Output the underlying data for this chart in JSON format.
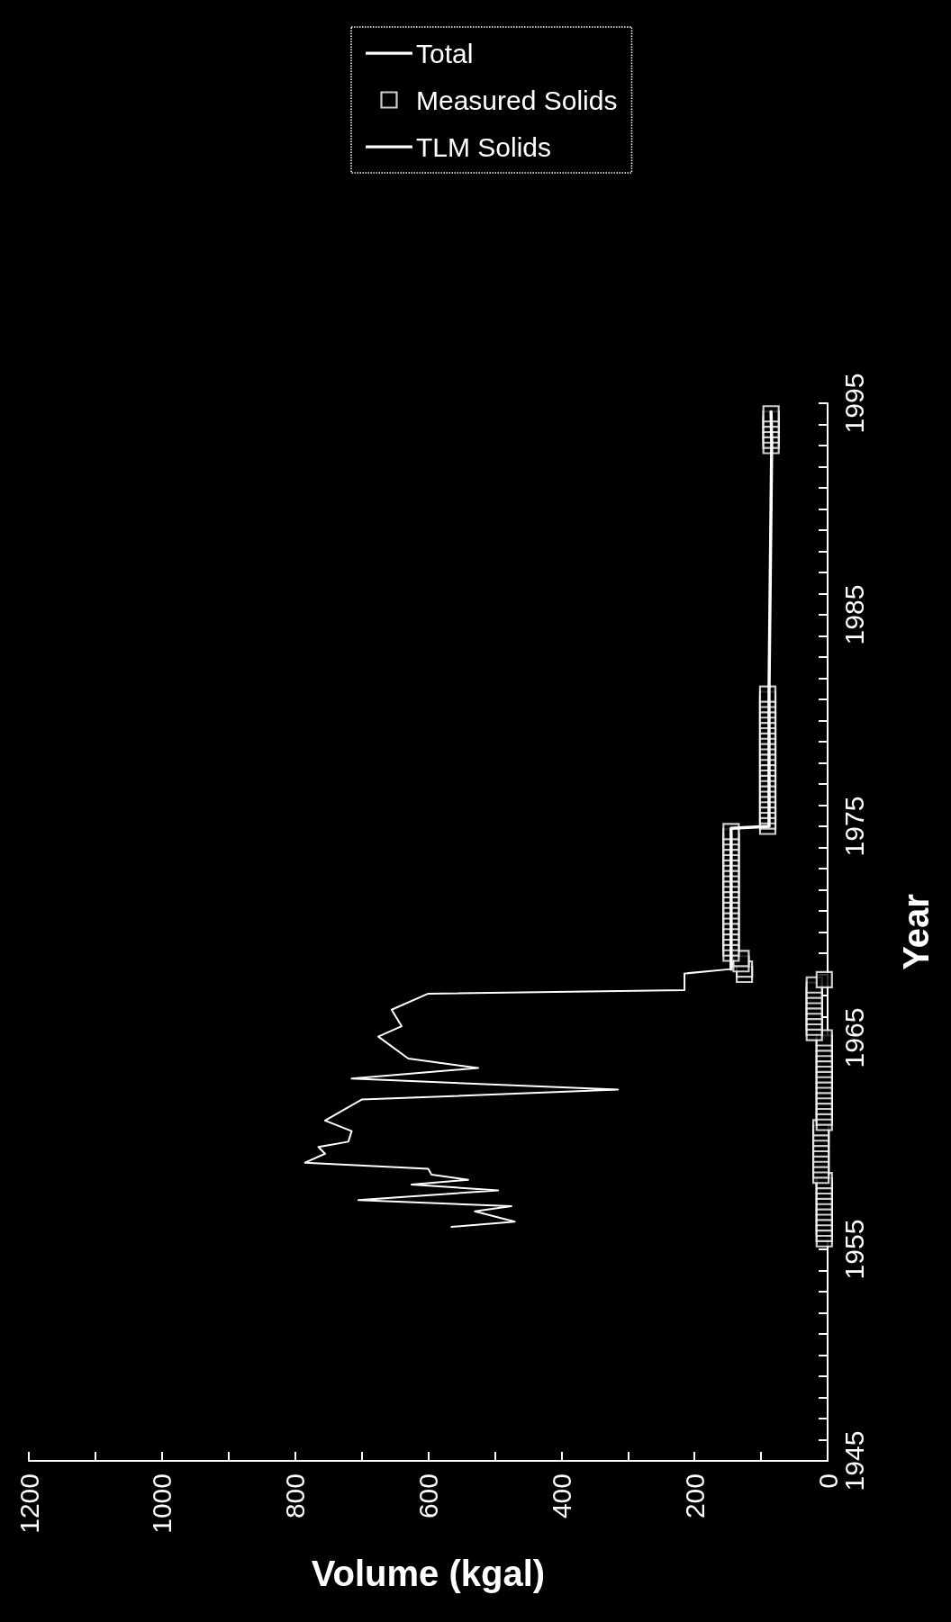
{
  "chart_data": {
    "type": "line",
    "xlabel": "Volume (kgal)",
    "ylabel": "Year",
    "xlim": [
      1200,
      0
    ],
    "ylim": [
      1945,
      1995
    ],
    "xticks": [
      0,
      {
        "value": 100,
        "label": null
      },
      200,
      {
        "value": 300,
        "label": null
      },
      400,
      {
        "value": 500,
        "label": null
      },
      600,
      {
        "value": 700,
        "label": null
      },
      800,
      {
        "value": 900,
        "label": null
      },
      1000,
      {
        "value": 1100,
        "label": null
      },
      1200
    ],
    "yticks": [
      1945,
      {
        "value": 1946,
        "label": null
      },
      {
        "value": 1947,
        "label": null
      },
      {
        "value": 1948,
        "label": null
      },
      {
        "value": 1949,
        "label": null
      },
      {
        "value": 1950,
        "label": null
      },
      {
        "value": 1951,
        "label": null
      },
      {
        "value": 1952,
        "label": null
      },
      {
        "value": 1953,
        "label": null
      },
      {
        "value": 1954,
        "label": null
      },
      1955,
      {
        "value": 1956,
        "label": null
      },
      {
        "value": 1957,
        "label": null
      },
      {
        "value": 1958,
        "label": null
      },
      {
        "value": 1959,
        "label": null
      },
      {
        "value": 1960,
        "label": null
      },
      {
        "value": 1961,
        "label": null
      },
      {
        "value": 1962,
        "label": null
      },
      {
        "value": 1963,
        "label": null
      },
      {
        "value": 1964,
        "label": null
      },
      1965,
      {
        "value": 1966,
        "label": null
      },
      {
        "value": 1967,
        "label": null
      },
      {
        "value": 1968,
        "label": null
      },
      {
        "value": 1969,
        "label": null
      },
      {
        "value": 1970,
        "label": null
      },
      {
        "value": 1971,
        "label": null
      },
      {
        "value": 1972,
        "label": null
      },
      {
        "value": 1973,
        "label": null
      },
      {
        "value": 1974,
        "label": null
      },
      1975,
      {
        "value": 1976,
        "label": null
      },
      {
        "value": 1977,
        "label": null
      },
      {
        "value": 1978,
        "label": null
      },
      {
        "value": 1979,
        "label": null
      },
      {
        "value": 1980,
        "label": null
      },
      {
        "value": 1981,
        "label": null
      },
      {
        "value": 1982,
        "label": null
      },
      {
        "value": 1983,
        "label": null
      },
      {
        "value": 1984,
        "label": null
      },
      1985,
      {
        "value": 1986,
        "label": null
      },
      {
        "value": 1987,
        "label": null
      },
      {
        "value": 1988,
        "label": null
      },
      {
        "value": 1989,
        "label": null
      },
      {
        "value": 1990,
        "label": null
      },
      {
        "value": 1991,
        "label": null
      },
      {
        "value": 1992,
        "label": null
      },
      {
        "value": 1993,
        "label": null
      },
      {
        "value": 1994,
        "label": null
      },
      1995
    ],
    "grid": false,
    "legend": "top",
    "series": [
      {
        "name": "Total",
        "color": "#ffffff",
        "values": [
          1956.06,
          1956.31,
          1956.8,
          1957.04,
          1957.33,
          1957.79,
          1958.06,
          1958.29,
          1958.53,
          1958.81,
          1959.1,
          1959.52,
          1959.84,
          1960.09,
          1960.59,
          1961.09,
          1962.08,
          1962.55,
          1963.07,
          1963.57,
          1964.02,
          1965.06,
          1965.55,
          1966.33,
          1967.09,
          1967.26,
          1968.04,
          1968.25
        ],
        "x": [
          565,
          470,
          530,
          475,
          705,
          495,
          625,
          540,
          595,
          600,
          785,
          755,
          765,
          720,
          715,
          755,
          700,
          315,
          715,
          525,
          630,
          675,
          640,
          655,
          600,
          215,
          215,
          145
        ]
      },
      {
        "name": "Measured Solids",
        "type": "scatter",
        "marker": "square",
        "color": "#ffffff",
        "values": [
          1955.5,
          1955.75,
          1956,
          1956.25,
          1956.5,
          1956.75,
          1957,
          1957.25,
          1957.5,
          1957.75,
          1958,
          1958.25,
          1958.5,
          1958.75,
          1959,
          1959.25,
          1959.5,
          1959.75,
          1960,
          1960.25,
          1960.5,
          1960.75,
          1961,
          1961.25,
          1961.5,
          1961.75,
          1962,
          1962.25,
          1962.5,
          1962.75,
          1963,
          1963.25,
          1963.5,
          1963.75,
          1964,
          1964.25,
          1964.5,
          1964.75,
          1965,
          1965.25,
          1965.5,
          1965.75,
          1966,
          1966.25,
          1966.5,
          1966.75,
          1967,
          1967.25,
          1967.5,
          1967.75,
          1968,
          1968.25,
          1968.5,
          1968.75,
          1969,
          1969.25,
          1969.5,
          1969.75,
          1970,
          1970.25,
          1970.5,
          1970.75,
          1971,
          1971.25,
          1971.5,
          1971.75,
          1972,
          1972.25,
          1972.5,
          1972.75,
          1973,
          1973.25,
          1973.5,
          1973.75,
          1974,
          1974.25,
          1974.5,
          1974.75,
          1975,
          1975.25,
          1975.5,
          1975.75,
          1976,
          1976.25,
          1976.5,
          1976.75,
          1977,
          1977.25,
          1977.5,
          1977.75,
          1978,
          1978.25,
          1978.5,
          1978.75,
          1979,
          1979.25,
          1979.5,
          1979.75,
          1980,
          1980.25,
          1980.5,
          1980.75,
          1981,
          1981.25,
          1993,
          1993.25,
          1993.5,
          1993.75,
          1994,
          1994.25,
          1994.5
        ],
        "x": [
          5,
          5,
          5,
          5,
          5,
          5,
          5,
          5,
          5,
          5,
          5,
          5,
          10,
          10,
          10,
          10,
          10,
          10,
          10,
          10,
          10,
          10,
          5,
          5,
          5,
          5,
          5,
          5,
          5,
          5,
          5,
          5,
          5,
          5,
          5,
          5,
          5,
          5,
          5,
          20,
          20,
          20,
          20,
          20,
          20,
          20,
          20,
          20,
          20,
          5,
          125,
          125,
          130,
          130,
          145,
          145,
          145,
          145,
          145,
          145,
          145,
          145,
          145,
          145,
          145,
          145,
          145,
          145,
          145,
          145,
          145,
          145,
          145,
          145,
          145,
          145,
          145,
          145,
          90,
          90,
          90,
          90,
          90,
          90,
          90,
          90,
          90,
          90,
          90,
          90,
          90,
          90,
          90,
          90,
          90,
          90,
          90,
          90,
          90,
          90,
          90,
          90,
          90,
          90,
          85,
          85,
          85,
          85,
          85,
          85,
          85
        ]
      },
      {
        "name": "TLM Solids",
        "color": "#ffffff",
        "values": [
          1968.25,
          1974.9,
          1975.0,
          1981.4,
          1993.1,
          1994.6
        ],
        "x": [
          145,
          145,
          88,
          88,
          84,
          85
        ]
      }
    ]
  }
}
